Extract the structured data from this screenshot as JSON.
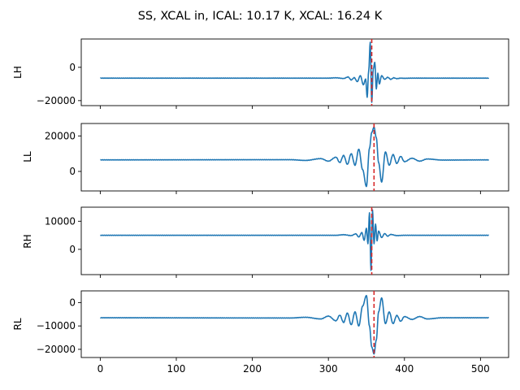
{
  "figure": {
    "title": "SS, XCAL in, ICAL: 10.17 K, XCAL: 16.24 K"
  },
  "chart_data": [
    {
      "type": "line",
      "ylabel": "LH",
      "xlim": [
        -25,
        537
      ],
      "ylim": [
        -23000,
        17000
      ],
      "yticks": [
        0,
        -20000
      ],
      "ytick_labels": [
        "0",
        "−20000"
      ],
      "xticks": [
        0,
        100,
        200,
        300,
        400,
        500
      ],
      "baseline": -6500,
      "center": 356,
      "peak_marker_x": 357,
      "x": [
        0,
        300,
        310,
        320,
        326,
        330,
        334,
        338,
        342,
        346,
        349,
        351,
        353,
        355,
        357,
        359,
        361,
        363,
        365,
        367,
        370,
        374,
        378,
        382,
        386,
        390,
        395,
        400,
        410,
        511
      ],
      "values": [
        -6500,
        -6500,
        -6300,
        -6700,
        -5800,
        -7600,
        -6200,
        -8600,
        -5000,
        -10500,
        -7000,
        -18000,
        -2000,
        15000,
        -21000,
        -1000,
        3000,
        -13000,
        -3500,
        -10000,
        -5000,
        -7200,
        -6000,
        -7200,
        -6300,
        -6800,
        -6500,
        -6600,
        -6500,
        -6500
      ]
    },
    {
      "type": "line",
      "ylabel": "LL",
      "xlim": [
        -25,
        537
      ],
      "ylim": [
        -11000,
        27000
      ],
      "yticks": [
        20000,
        0
      ],
      "ytick_labels": [
        "20000",
        "0"
      ],
      "xticks": [
        0,
        100,
        200,
        300,
        400,
        500
      ],
      "baseline": 6500,
      "center": 360,
      "peak_marker_x": 360,
      "x": [
        0,
        250,
        270,
        290,
        300,
        310,
        315,
        320,
        325,
        330,
        335,
        340,
        345,
        350,
        354,
        357,
        360,
        363,
        366,
        370,
        375,
        380,
        385,
        390,
        395,
        400,
        410,
        420,
        430,
        450,
        511
      ],
      "values": [
        6500,
        6600,
        6200,
        7200,
        5800,
        8000,
        5000,
        9000,
        4000,
        10000,
        3500,
        12500,
        1000,
        -8500,
        13000,
        22000,
        25000,
        19000,
        5000,
        -6000,
        11000,
        3500,
        9500,
        4500,
        8500,
        5500,
        7400,
        5800,
        7000,
        6400,
        6500
      ]
    },
    {
      "type": "line",
      "ylabel": "RH",
      "xlim": [
        -25,
        537
      ],
      "ylim": [
        -9000,
        15000
      ],
      "yticks": [
        10000,
        0
      ],
      "ytick_labels": [
        "10000",
        "0"
      ],
      "xticks": [
        0,
        100,
        200,
        300,
        400,
        500
      ],
      "baseline": 5000,
      "center": 357,
      "peak_marker_x": 357,
      "x": [
        0,
        310,
        320,
        330,
        336,
        340,
        344,
        347,
        350,
        352,
        354,
        356,
        358,
        360,
        362,
        364,
        366,
        370,
        374,
        378,
        382,
        390,
        400,
        511
      ],
      "values": [
        5000,
        5000,
        5200,
        4900,
        5500,
        4400,
        6000,
        3200,
        7500,
        2000,
        13000,
        -7500,
        14000,
        2000,
        9000,
        3000,
        6500,
        4200,
        5600,
        4700,
        5300,
        4900,
        5000,
        5000
      ]
    },
    {
      "type": "line",
      "ylabel": "RL",
      "xlim": [
        -25,
        537
      ],
      "ylim": [
        -23500,
        5000
      ],
      "yticks": [
        0,
        -10000,
        -20000
      ],
      "ytick_labels": [
        "0",
        "−10000",
        "−20000"
      ],
      "xticks": [
        0,
        100,
        200,
        300,
        400,
        500
      ],
      "xtick_labels": [
        "0",
        "100",
        "200",
        "300",
        "400",
        "500"
      ],
      "baseline": -6500,
      "center": 360,
      "peak_marker_x": 360,
      "x": [
        0,
        250,
        270,
        290,
        300,
        310,
        315,
        320,
        325,
        330,
        335,
        340,
        345,
        350,
        354,
        357,
        360,
        363,
        366,
        370,
        375,
        380,
        385,
        390,
        395,
        400,
        410,
        420,
        430,
        450,
        511
      ],
      "values": [
        -6500,
        -6600,
        -6300,
        -7000,
        -5800,
        -7800,
        -5400,
        -8500,
        -4500,
        -9500,
        -4000,
        -10000,
        -1500,
        3000,
        -10000,
        -19000,
        -22000,
        -16000,
        -4000,
        2000,
        -9000,
        -4000,
        -9000,
        -5500,
        -8000,
        -6000,
        -7200,
        -6000,
        -7000,
        -6500,
        -6500
      ]
    }
  ]
}
